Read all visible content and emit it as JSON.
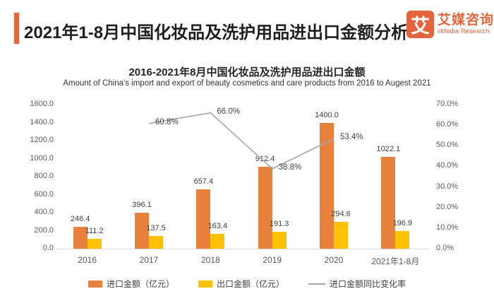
{
  "header": {
    "title": "2021年1-8月中国化妆品及洗护用品进出口金额分析",
    "logo": {
      "mark": "艾",
      "name_cn": "艾媒咨询",
      "name_en": "iiMedia Research"
    }
  },
  "chart_data": {
    "type": "bar",
    "title": "2016-2021年8月中国化妆品及洗护用品进出口金额",
    "subtitle": "Amount of China's import and export of beauty cosmetics and care products from 2016 to Augest 2021",
    "categories": [
      "2016",
      "2017",
      "2018",
      "2019",
      "2020",
      "2021年1-8月"
    ],
    "series": [
      {
        "name": "进口金额（亿元）",
        "type": "bar",
        "axis": "left",
        "color": "#e8813b",
        "values": [
          246.4,
          396.1,
          657.4,
          912.4,
          1400.0,
          1022.1
        ]
      },
      {
        "name": "出口金额（亿元）",
        "type": "bar",
        "axis": "left",
        "color": "#fdc106",
        "values": [
          111.2,
          137.5,
          163.4,
          191.3,
          294.6,
          196.9
        ]
      },
      {
        "name": "进口金额同比变化率",
        "type": "line",
        "axis": "right",
        "color": "#a6a6a6",
        "values": [
          null,
          60.8,
          66.0,
          38.8,
          53.4,
          null
        ]
      }
    ],
    "left_axis": {
      "min": 0,
      "max": 1600,
      "step": 200,
      "decimals": 1,
      "suffix": ""
    },
    "right_axis": {
      "min": 0,
      "max": 70,
      "step": 10,
      "decimals": 1,
      "suffix": "%"
    },
    "grid": false,
    "data_labels": true,
    "legend_position": "bottom"
  },
  "colors": {
    "accent_bar": "#e8643c",
    "logo_orange": "#e2653e",
    "import_bar": "#e8813b",
    "export_bar": "#fdc106",
    "growth_line": "#a6a6a6",
    "axis_line": "#d9d9d9",
    "axis_text": "#595959",
    "label_text": "#404040"
  }
}
